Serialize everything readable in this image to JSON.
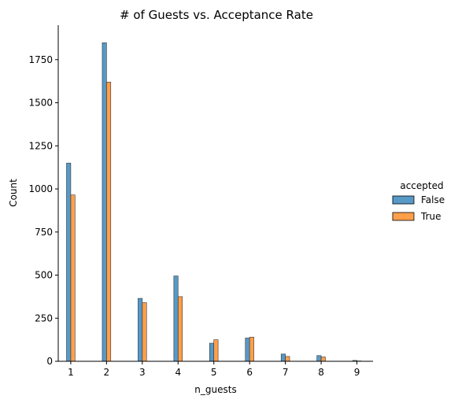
{
  "chart_data": {
    "type": "bar",
    "title": "# of Guests vs. Acceptance Rate",
    "xlabel": "n_guests",
    "ylabel": "Count",
    "categories": [
      "1",
      "2",
      "3",
      "4",
      "5",
      "6",
      "7",
      "8",
      "9"
    ],
    "x_ticks": [
      "1",
      "2",
      "3",
      "4",
      "5",
      "6",
      "7",
      "8",
      "9"
    ],
    "y_ticks": [
      "0",
      "250",
      "500",
      "750",
      "1000",
      "1250",
      "1500",
      "1750"
    ],
    "ylim": [
      0,
      1950
    ],
    "xlim": [
      0.65,
      9.45
    ],
    "grid": false,
    "legend": {
      "title": "accepted",
      "placement": "center-right",
      "entries": [
        "False",
        "True"
      ]
    },
    "series": [
      {
        "name": "False",
        "color": "#1f77b4",
        "values": [
          1150,
          1848,
          365,
          495,
          105,
          135,
          42,
          33,
          5
        ]
      },
      {
        "name": "True",
        "color": "#ff7f0e",
        "values": [
          965,
          1620,
          340,
          375,
          125,
          140,
          28,
          25,
          2
        ]
      }
    ]
  }
}
